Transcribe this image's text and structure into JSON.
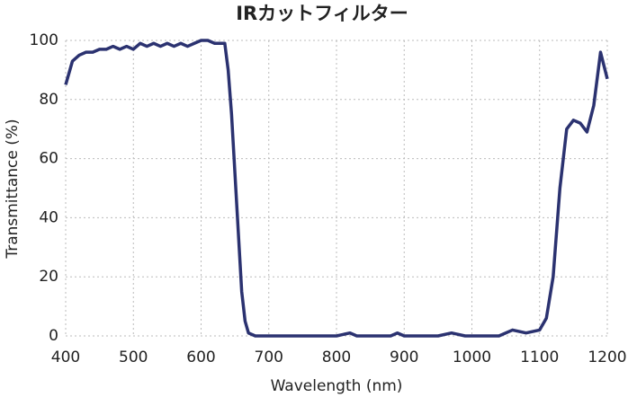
{
  "chart_data": {
    "type": "line",
    "title": "IRカットフィルター",
    "x_label": "Wavelength (nm)",
    "y_label": "Transmittance (%)",
    "xlim": [
      400,
      1200
    ],
    "ylim": [
      0,
      100
    ],
    "xticks": [
      400,
      500,
      600,
      700,
      800,
      900,
      1000,
      1100,
      1200
    ],
    "yticks": [
      0,
      20,
      40,
      60,
      80,
      100
    ],
    "grid": true,
    "series": [
      {
        "name": "IRカットフィルター",
        "color": "#2b3270",
        "x": [
          400,
          410,
          420,
          430,
          440,
          450,
          460,
          470,
          480,
          490,
          500,
          510,
          520,
          530,
          540,
          550,
          560,
          570,
          580,
          590,
          600,
          610,
          620,
          630,
          635,
          640,
          645,
          650,
          655,
          660,
          665,
          670,
          680,
          700,
          800,
          820,
          830,
          880,
          890,
          900,
          950,
          970,
          990,
          1040,
          1060,
          1080,
          1100,
          1110,
          1120,
          1130,
          1140,
          1150,
          1160,
          1170,
          1180,
          1190,
          1200
        ],
        "values": [
          85,
          93,
          95,
          96,
          96,
          97,
          97,
          98,
          97,
          98,
          97,
          99,
          98,
          99,
          98,
          99,
          98,
          99,
          98,
          99,
          100,
          100,
          99,
          99,
          99,
          90,
          75,
          55,
          35,
          15,
          5,
          1,
          0,
          0,
          0,
          1,
          0,
          0,
          1,
          0,
          0,
          1,
          0,
          0,
          2,
          1,
          2,
          6,
          20,
          50,
          70,
          73,
          72,
          69,
          78,
          96,
          87
        ]
      }
    ]
  }
}
